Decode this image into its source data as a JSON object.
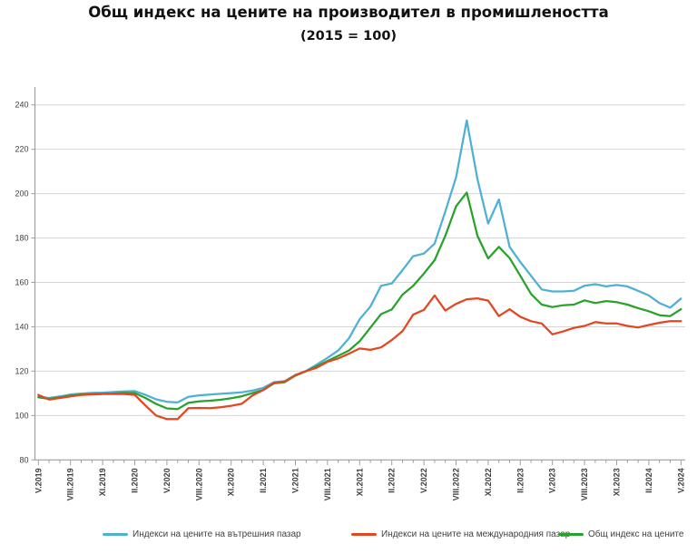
{
  "title": "Общ индекс на цените на производител в промишлеността",
  "subtitle": "(2015 = 100)",
  "chart_data": {
    "type": "line",
    "x_start": "V.2019",
    "x_end": "V.2024",
    "x_frequency": "monthly",
    "x_tick_labels": [
      "V.2019",
      "VIII.2019",
      "XI.2019",
      "II.2020",
      "V.2020",
      "VIII.2020",
      "XI.2020",
      "II.2021",
      "V.2021",
      "VIII.2021",
      "XI.2021",
      "II.2022",
      "V.2022",
      "VIII.2022",
      "XI.2022",
      "II.2023",
      "V.2023",
      "VIII.2023",
      "XI.2023",
      "II.2024",
      "V.2024"
    ],
    "tick_label_every_n_months": 3,
    "ylim": [
      80,
      240
    ],
    "yticks": [
      80,
      100,
      120,
      140,
      160,
      180,
      200,
      220,
      240
    ],
    "grid": "horizontal",
    "legend_position": "bottom",
    "colors": {
      "grid": "#d6d6d6",
      "axis": "#9e9e9e",
      "label": "#3f3f3f"
    },
    "series": [
      {
        "key": "domestic",
        "name": "Индекси на цените на вътрешния пазар",
        "color": "#4fb0d5",
        "values": [
          108.4,
          107.9,
          108.6,
          109.5,
          109.9,
          110.2,
          110.3,
          110.6,
          110.9,
          111.0,
          109.3,
          107.3,
          106.2,
          105.9,
          108.4,
          109.1,
          109.4,
          109.8,
          110.1,
          110.5,
          111.2,
          112.5,
          115.0,
          115.5,
          118.3,
          120.1,
          123.0,
          126.0,
          129.3,
          134.8,
          143.4,
          149.1,
          158.5,
          159.5,
          165.5,
          171.8,
          173.0,
          177.5,
          192.0,
          207.3,
          233.0,
          206.5,
          186.5,
          197.4,
          176.0,
          169.2,
          163.0,
          156.8,
          155.9,
          155.9,
          156.2,
          158.5,
          159.2,
          158.2,
          158.8,
          158.2,
          156.2,
          154.1,
          150.7,
          148.6,
          152.7
        ]
      },
      {
        "key": "international",
        "name": "Индекси на цените на международния пазар",
        "color": "#e2471f",
        "values": [
          109.3,
          107.2,
          107.9,
          108.6,
          109.3,
          109.5,
          109.7,
          109.7,
          109.7,
          109.3,
          104.5,
          100.0,
          98.4,
          98.4,
          103.3,
          103.4,
          103.3,
          103.7,
          104.4,
          105.3,
          109.1,
          111.5,
          114.8,
          115.2,
          118.2,
          120.0,
          121.6,
          124.2,
          125.7,
          127.9,
          130.2,
          129.6,
          130.7,
          134.0,
          138.0,
          145.5,
          147.6,
          154.1,
          147.3,
          150.3,
          152.4,
          152.8,
          151.8,
          144.8,
          147.9,
          144.5,
          142.5,
          141.5,
          136.6,
          137.9,
          139.5,
          140.4,
          142.1,
          141.5,
          141.5,
          140.4,
          139.7,
          140.8,
          141.8,
          142.5,
          142.5
        ]
      },
      {
        "key": "total",
        "name": "Общ индекс на цените",
        "color": "#27a22b",
        "values": [
          108.2,
          107.5,
          108.2,
          109.0,
          109.5,
          109.7,
          109.8,
          109.9,
          110.2,
          110.1,
          107.9,
          105.2,
          103.2,
          102.9,
          105.7,
          106.4,
          106.7,
          107.1,
          107.8,
          108.7,
          110.1,
          111.5,
          114.5,
          115.0,
          118.0,
          120.0,
          122.2,
          124.6,
          126.9,
          129.3,
          133.5,
          139.6,
          145.7,
          147.8,
          154.5,
          158.5,
          164.0,
          170.0,
          181.0,
          194.3,
          200.5,
          181.0,
          170.8,
          176.0,
          171.0,
          163.0,
          154.8,
          150.0,
          148.9,
          149.7,
          150.0,
          151.9,
          150.7,
          151.6,
          151.1,
          150.0,
          148.4,
          147.0,
          145.2,
          144.8,
          147.9
        ]
      }
    ]
  }
}
